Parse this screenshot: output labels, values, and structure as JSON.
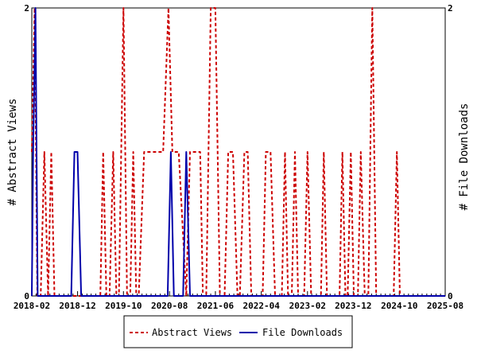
{
  "chart_data": {
    "type": "line",
    "xlabel": "",
    "ylabel_left": "# Abstract Views",
    "ylabel_right": "# File Downloads",
    "x_range": [
      "2018-02",
      "2025-08"
    ],
    "x_tick_labels": [
      "2018-02",
      "2018-12",
      "2019-10",
      "2020-08",
      "2021-06",
      "2022-04",
      "2023-02",
      "2023-12",
      "2024-10",
      "2025-08"
    ],
    "y_range": [
      0,
      2
    ],
    "y_tick_labels": [
      "0",
      "2"
    ],
    "grid": false,
    "legend_placement": "bottom",
    "series": [
      {
        "name": "Abstract Views",
        "color": "#cc0000",
        "style": "dashed",
        "points": [
          [
            "2018-02-01",
            1
          ],
          [
            "2018-02-20",
            2
          ],
          [
            "2018-03-10",
            0
          ],
          [
            "2018-04-01",
            0
          ],
          [
            "2018-04-25",
            1
          ],
          [
            "2018-05-20",
            0
          ],
          [
            "2018-06-10",
            1
          ],
          [
            "2018-07-01",
            0
          ],
          [
            "2019-05-01",
            0
          ],
          [
            "2019-05-20",
            1
          ],
          [
            "2019-06-10",
            0
          ],
          [
            "2019-07-01",
            0
          ],
          [
            "2019-07-25",
            1
          ],
          [
            "2019-08-15",
            0
          ],
          [
            "2019-09-01",
            0
          ],
          [
            "2019-10-01",
            2
          ],
          [
            "2019-10-25",
            0
          ],
          [
            "2019-11-15",
            0
          ],
          [
            "2019-12-05",
            1
          ],
          [
            "2019-12-25",
            0
          ],
          [
            "2020-01-10",
            0
          ],
          [
            "2020-02-15",
            1
          ],
          [
            "2020-06-20",
            1
          ],
          [
            "2020-07-25",
            2
          ],
          [
            "2020-08-20",
            1
          ],
          [
            "2020-10-01",
            1
          ],
          [
            "2020-11-20",
            0
          ],
          [
            "2020-12-15",
            1
          ],
          [
            "2021-02-20",
            1
          ],
          [
            "2021-03-10",
            0
          ],
          [
            "2021-04-01",
            0
          ],
          [
            "2021-05-01",
            2
          ],
          [
            "2021-06-01",
            2
          ],
          [
            "2021-07-01",
            0
          ],
          [
            "2021-08-01",
            0
          ],
          [
            "2021-08-25",
            1
          ],
          [
            "2021-09-25",
            1
          ],
          [
            "2021-10-25",
            0
          ],
          [
            "2021-11-10",
            0
          ],
          [
            "2021-12-10",
            1
          ],
          [
            "2022-01-01",
            1
          ],
          [
            "2022-01-25",
            0
          ],
          [
            "2022-04-10",
            0
          ],
          [
            "2022-05-01",
            1
          ],
          [
            "2022-06-01",
            1
          ],
          [
            "2022-07-01",
            0
          ],
          [
            "2022-08-15",
            0
          ],
          [
            "2022-09-05",
            1
          ],
          [
            "2022-09-25",
            0
          ],
          [
            "2022-10-20",
            0
          ],
          [
            "2022-11-10",
            1
          ],
          [
            "2022-12-01",
            0
          ],
          [
            "2023-01-10",
            0
          ],
          [
            "2023-02-01",
            1
          ],
          [
            "2023-02-25",
            0
          ],
          [
            "2023-05-01",
            0
          ],
          [
            "2023-05-20",
            1
          ],
          [
            "2023-06-10",
            0
          ],
          [
            "2023-09-01",
            0
          ],
          [
            "2023-09-20",
            1
          ],
          [
            "2023-10-10",
            0
          ],
          [
            "2023-10-25",
            0
          ],
          [
            "2023-11-15",
            1
          ],
          [
            "2023-12-05",
            0
          ],
          [
            "2024-01-01",
            0
          ],
          [
            "2024-01-20",
            1
          ],
          [
            "2024-02-15",
            0
          ],
          [
            "2024-03-10",
            0
          ],
          [
            "2024-04-05",
            2
          ],
          [
            "2024-05-01",
            0
          ],
          [
            "2024-08-25",
            0
          ],
          [
            "2024-09-15",
            1
          ],
          [
            "2024-10-05",
            0
          ],
          [
            "2025-08-01",
            0
          ]
        ]
      },
      {
        "name": "File Downloads",
        "color": "#0000aa",
        "style": "solid",
        "points": [
          [
            "2018-02-01",
            0
          ],
          [
            "2018-02-10",
            1
          ],
          [
            "2018-02-25",
            2
          ],
          [
            "2018-03-12",
            0
          ],
          [
            "2018-10-20",
            0
          ],
          [
            "2018-11-10",
            1
          ],
          [
            "2018-12-01",
            1
          ],
          [
            "2018-12-25",
            0
          ],
          [
            "2020-07-20",
            0
          ],
          [
            "2020-08-10",
            1
          ],
          [
            "2020-08-30",
            0
          ],
          [
            "2020-10-30",
            0
          ],
          [
            "2020-11-20",
            1
          ],
          [
            "2020-12-15",
            0
          ],
          [
            "2025-08-01",
            0
          ]
        ]
      }
    ]
  }
}
